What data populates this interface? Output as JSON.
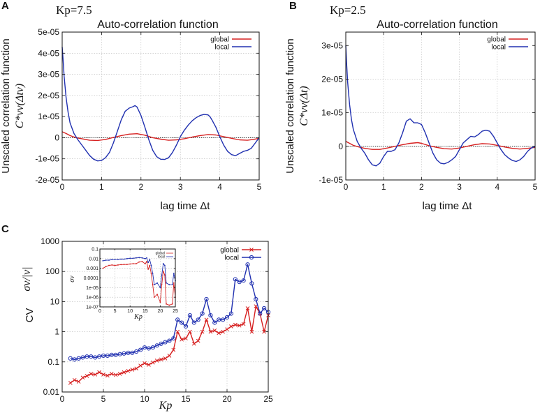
{
  "chart_data": [
    {
      "id": "A",
      "type": "line",
      "panel_label": "A",
      "kp_label": "Kp=7.5",
      "title": "Auto-correlation function",
      "xlabel": "lag time  Δt",
      "ylabel": "Unscaled correlation function",
      "ylabel_math": "C*vv(Δtv)",
      "xlim": [
        0,
        5
      ],
      "ylim": [
        -2e-05,
        5e-05
      ],
      "xticks": [
        0,
        1,
        2,
        3,
        4,
        5
      ],
      "xtick_labels": [
        "0",
        "1",
        "2",
        "3",
        "4",
        "5"
      ],
      "yticks": [
        -2e-05,
        -1e-05,
        0,
        1e-05,
        2e-05,
        3e-05,
        4e-05,
        5e-05
      ],
      "ytick_labels": [
        "-2e-05",
        "-1e-05",
        "0",
        "1e-05",
        "2e-05",
        "3e-05",
        "4e-05",
        "5e-05"
      ],
      "grid": true,
      "legend_position": "top-right",
      "series": [
        {
          "name": "global",
          "color": "#d62020",
          "x": [
            0,
            0.1,
            0.2,
            0.35,
            0.5,
            0.7,
            0.9,
            1.1,
            1.3,
            1.5,
            1.7,
            1.9,
            2.1,
            2.3,
            2.5,
            2.7,
            2.9,
            3.1,
            3.3,
            3.5,
            3.7,
            3.9,
            4.1,
            4.3,
            4.5,
            4.7,
            4.85,
            5.0
          ],
          "y": [
            2.8e-06,
            2e-06,
            1e-06,
            0.0,
            -5e-07,
            -1.2e-06,
            -1.3e-06,
            -8e-07,
            1e-07,
            1e-06,
            1.7e-06,
            1.9e-06,
            1.2e-06,
            0.0,
            -7e-07,
            -1.2e-06,
            -1e-06,
            -5e-07,
            3e-07,
            1e-06,
            1.5e-06,
            1.3e-06,
            5e-07,
            -3e-07,
            -1e-06,
            -1.2e-06,
            -8e-07,
            -3e-07
          ]
        },
        {
          "name": "local",
          "color": "#2030b0",
          "x": [
            0,
            0.02,
            0.05,
            0.1,
            0.15,
            0.2,
            0.3,
            0.4,
            0.5,
            0.6,
            0.7,
            0.8,
            0.9,
            1.0,
            1.1,
            1.2,
            1.3,
            1.4,
            1.5,
            1.6,
            1.7,
            1.8,
            1.85,
            1.9,
            2.0,
            2.1,
            2.2,
            2.3,
            2.4,
            2.5,
            2.6,
            2.7,
            2.8,
            2.9,
            3.0,
            3.1,
            3.2,
            3.3,
            3.4,
            3.5,
            3.6,
            3.7,
            3.75,
            3.8,
            3.9,
            4.0,
            4.1,
            4.2,
            4.3,
            4.4,
            4.5,
            4.6,
            4.7,
            4.8,
            4.9,
            5.0
          ],
          "y": [
            4.3e-05,
            3.8e-05,
            2.9e-05,
            1.9e-05,
            1.2e-05,
            7e-06,
            2e-06,
            -1e-06,
            -3.5e-06,
            -6e-06,
            -8.5e-06,
            -1.02e-05,
            -1.1e-05,
            -1.08e-05,
            -9.5e-06,
            -7e-06,
            -2.5e-06,
            3e-06,
            8.5e-06,
            1.25e-05,
            1.4e-05,
            1.47e-05,
            1.52e-05,
            1.45e-05,
            1.05e-05,
            5e-06,
            -1e-06,
            -6e-06,
            -9e-06,
            -1.02e-05,
            -1.03e-05,
            -9.5e-06,
            -7e-06,
            -3.5e-06,
            5e-07,
            3.5e-06,
            6e-06,
            8e-06,
            9.5e-06,
            1.05e-05,
            1.1e-05,
            1.08e-05,
            1e-05,
            8.5e-06,
            5e-06,
            5e-07,
            -3.5e-06,
            -6.5e-06,
            -8e-06,
            -8.5e-06,
            -7.5e-06,
            -6.5e-06,
            -6e-06,
            -5e-06,
            -2.5e-06,
            0.0
          ]
        }
      ]
    },
    {
      "id": "B",
      "type": "line",
      "panel_label": "B",
      "kp_label": "Kp=2.5",
      "title": "Auto-correlation function",
      "xlabel": "lag time  Δt",
      "ylabel": "Unscaled correlation function",
      "ylabel_math": "C*vv(Δt)",
      "xlim": [
        0,
        5
      ],
      "ylim": [
        -1e-05,
        3.4e-05
      ],
      "xticks": [
        0,
        1,
        2,
        3,
        4,
        5
      ],
      "xtick_labels": [
        "0",
        "1",
        "2",
        "3",
        "4",
        "5"
      ],
      "yticks": [
        -1e-05,
        0,
        1e-05,
        2e-05,
        3e-05
      ],
      "ytick_labels": [
        "-1e-05",
        "0",
        "1e-05",
        "2e-05",
        "3e-05"
      ],
      "grid": true,
      "legend_position": "top-right",
      "series": [
        {
          "name": "global",
          "color": "#d62020",
          "x": [
            0,
            0.1,
            0.2,
            0.35,
            0.5,
            0.7,
            0.9,
            1.1,
            1.3,
            1.5,
            1.7,
            1.9,
            2.0,
            2.2,
            2.4,
            2.6,
            2.8,
            3.0,
            3.2,
            3.4,
            3.6,
            3.8,
            4.0,
            4.2,
            4.4,
            4.6,
            4.8,
            5.0
          ],
          "y": [
            1.5e-06,
            9e-07,
            3e-07,
            -2e-07,
            -6e-07,
            -9e-07,
            -9e-07,
            -5e-07,
            0,
            5e-07,
            9e-07,
            1.1e-06,
            9e-07,
            2e-07,
            -3e-07,
            -7e-07,
            -8e-07,
            -5e-07,
            0,
            5e-07,
            8e-07,
            7e-07,
            3e-07,
            -2e-07,
            -6e-07,
            -8e-07,
            -6e-07,
            -3e-07
          ]
        },
        {
          "name": "local",
          "color": "#2030b0",
          "x": [
            0,
            0.02,
            0.05,
            0.1,
            0.15,
            0.2,
            0.3,
            0.4,
            0.5,
            0.6,
            0.7,
            0.8,
            0.9,
            1.0,
            1.1,
            1.2,
            1.3,
            1.4,
            1.5,
            1.6,
            1.7,
            1.8,
            1.9,
            2.0,
            2.1,
            2.2,
            2.3,
            2.4,
            2.5,
            2.6,
            2.7,
            2.8,
            2.9,
            3.0,
            3.1,
            3.2,
            3.3,
            3.4,
            3.5,
            3.6,
            3.7,
            3.8,
            3.9,
            4.0,
            4.1,
            4.2,
            4.3,
            4.4,
            4.5,
            4.6,
            4.7,
            4.8,
            4.9,
            5.0
          ],
          "y": [
            3e-05,
            2.5e-05,
            1.9e-05,
            1.25e-05,
            8e-06,
            5e-06,
            1.5e-06,
            -5e-07,
            -2e-06,
            -4e-06,
            -5.5e-06,
            -5.8e-06,
            -5e-06,
            -3e-06,
            -1.5e-06,
            -1.5e-06,
            -1e-06,
            1e-06,
            4e-06,
            7.5e-06,
            8.2e-06,
            7e-06,
            7e-06,
            6.5e-06,
            4e-06,
            1e-06,
            -2e-06,
            -4e-06,
            -5e-06,
            -5.2e-06,
            -4.8e-06,
            -4e-06,
            -3e-06,
            -1e-06,
            1e-06,
            2e-06,
            3e-06,
            2.8e-06,
            3.5e-06,
            4.5e-06,
            4.8e-06,
            4.5e-06,
            3e-06,
            1e-06,
            -1e-06,
            -2.5e-06,
            -3.5e-06,
            -4.2e-06,
            -4.5e-06,
            -4e-06,
            -3e-06,
            -1.5e-06,
            -5e-07,
            0
          ]
        }
      ]
    },
    {
      "id": "C",
      "type": "line",
      "panel_label": "C",
      "title": "",
      "xlabel": "Kp",
      "ylabel": "CV",
      "ylabel_math": "σv/|v|",
      "yscale": "log",
      "xlim": [
        0,
        25
      ],
      "ylim": [
        0.01,
        1000
      ],
      "xticks": [
        0,
        5,
        10,
        15,
        20,
        25
      ],
      "xtick_labels": [
        "0",
        "5",
        "10",
        "15",
        "20",
        "25"
      ],
      "yticks": [
        0.01,
        0.1,
        1,
        10,
        100,
        1000
      ],
      "ytick_labels": [
        "0.01",
        "0.1",
        "1",
        "10",
        "100",
        "1000"
      ],
      "grid": true,
      "legend_position": "top-right",
      "series": [
        {
          "name": "global",
          "color": "#d62020",
          "marker": "x",
          "x": [
            1.0,
            1.5,
            2.0,
            2.5,
            3.0,
            3.5,
            4.0,
            4.5,
            5.0,
            5.5,
            6.0,
            6.5,
            7.0,
            7.5,
            8.0,
            8.5,
            9.0,
            9.5,
            10.0,
            10.5,
            11.0,
            11.5,
            12.0,
            12.5,
            13.0,
            13.5,
            14.0,
            14.5,
            15.0,
            15.5,
            16.0,
            16.5,
            17.0,
            17.5,
            18.0,
            18.5,
            19.0,
            19.5,
            20.0,
            20.5,
            21.0,
            21.5,
            22.0,
            22.5,
            23.0,
            23.5,
            24.0,
            24.5,
            25.0
          ],
          "y": [
            0.02,
            0.025,
            0.022,
            0.03,
            0.034,
            0.04,
            0.038,
            0.045,
            0.038,
            0.035,
            0.04,
            0.037,
            0.04,
            0.045,
            0.05,
            0.055,
            0.06,
            0.075,
            0.09,
            0.08,
            0.095,
            0.11,
            0.12,
            0.13,
            0.16,
            0.25,
            1.0,
            0.55,
            0.6,
            1.0,
            0.4,
            0.5,
            1.0,
            2.5,
            1.0,
            1.1,
            0.9,
            1.0,
            1.2,
            1.5,
            1.7,
            1.6,
            1.8,
            6.0,
            1.0,
            7.0,
            4.0,
            1.0,
            3.5
          ]
        },
        {
          "name": "local",
          "color": "#2030b0",
          "marker": "o",
          "x": [
            1.0,
            1.5,
            2.0,
            2.5,
            3.0,
            3.5,
            4.0,
            4.5,
            5.0,
            5.5,
            6.0,
            6.5,
            7.0,
            7.5,
            8.0,
            8.5,
            9.0,
            9.5,
            10.0,
            10.5,
            11.0,
            11.5,
            12.0,
            12.5,
            13.0,
            13.5,
            14.0,
            14.5,
            15.0,
            15.5,
            16.0,
            16.5,
            17.0,
            17.5,
            18.0,
            18.5,
            19.0,
            19.5,
            20.0,
            20.5,
            21.0,
            21.5,
            22.0,
            22.5,
            23.0,
            23.5,
            24.0,
            24.5,
            25.0
          ],
          "y": [
            0.13,
            0.12,
            0.13,
            0.14,
            0.15,
            0.15,
            0.14,
            0.15,
            0.16,
            0.16,
            0.17,
            0.17,
            0.18,
            0.19,
            0.2,
            0.2,
            0.22,
            0.25,
            0.3,
            0.28,
            0.3,
            0.35,
            0.4,
            0.45,
            0.5,
            0.6,
            2.5,
            2.0,
            1.5,
            3.5,
            2.0,
            2.5,
            4.0,
            12.0,
            3.5,
            2.0,
            2.5,
            2.5,
            3.0,
            4.0,
            55,
            45,
            50,
            170,
            40,
            12,
            4.0,
            6.0,
            4.5
          ]
        }
      ]
    },
    {
      "id": "C-inset",
      "type": "line",
      "title": "",
      "xlabel": "Kp",
      "ylabel": "σv",
      "yscale": "log",
      "xlim": [
        0,
        25
      ],
      "ylim": [
        1e-07,
        0.1
      ],
      "xticks": [
        0,
        5,
        10,
        15,
        20,
        25
      ],
      "xtick_labels": [
        "0",
        "5",
        "10",
        "15",
        "20",
        "25"
      ],
      "yticks": [
        1e-07,
        1e-06,
        1e-05,
        0.0001,
        0.001,
        0.01,
        0.1
      ],
      "ytick_labels": [
        "1e-07",
        "1e-06",
        "1e-05",
        "0.0001",
        "0.001",
        "0.01",
        "0.1"
      ],
      "grid": true,
      "legend_position": "top-right",
      "series": [
        {
          "name": "global",
          "color": "#d62020",
          "x": [
            1,
            2,
            3,
            4,
            5,
            6,
            7,
            8,
            9,
            10,
            11,
            12,
            13,
            14,
            15,
            15.5,
            16,
            16.5,
            17,
            17.5,
            18,
            19,
            20,
            20.5,
            21,
            21.5,
            22,
            23,
            24,
            24.5,
            25
          ],
          "y": [
            0.001,
            0.0015,
            0.002,
            0.0022,
            0.002,
            0.0022,
            0.0024,
            0.0025,
            0.0025,
            0.0028,
            0.003,
            0.003,
            0.0045,
            0.005,
            0.003,
            0.005,
            0.0008,
            0.002,
            0.0003,
            2e-05,
            1e-06,
            2e-06,
            3e-07,
            2e-05,
            0.0005,
            0.0002,
            2e-07,
            1.5e-07,
            2e-07,
            3e-05,
            1e-06
          ]
        },
        {
          "name": "local",
          "color": "#2030b0",
          "x": [
            1,
            2,
            3,
            4,
            5,
            6,
            7,
            8,
            9,
            10,
            11,
            12,
            13,
            14,
            15,
            15.5,
            16,
            16.5,
            17,
            17.5,
            18,
            19,
            20,
            20.5,
            21,
            21.5,
            22,
            23,
            24,
            24.5,
            25
          ],
          "y": [
            0.006,
            0.007,
            0.007,
            0.008,
            0.008,
            0.008,
            0.009,
            0.009,
            0.01,
            0.011,
            0.011,
            0.012,
            0.013,
            0.012,
            0.01,
            0.012,
            0.004,
            0.008,
            0.002,
            0.0003,
            2e-05,
            3e-05,
            1e-05,
            0.0002,
            0.003,
            0.002,
            3e-05,
            2e-05,
            2e-05,
            0.0003,
            5e-05
          ]
        }
      ]
    }
  ]
}
